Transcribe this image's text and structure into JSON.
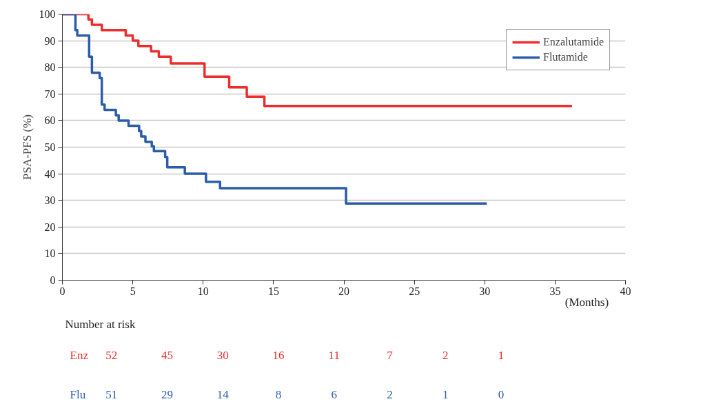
{
  "chart_data": {
    "type": "step",
    "xlabel": "(Months)",
    "ylabel": "PSA-PFS (%)",
    "xlim": [
      0,
      40
    ],
    "xticks": [
      0,
      5,
      10,
      15,
      20,
      25,
      30,
      35,
      40
    ],
    "ylim": [
      0,
      100
    ],
    "yticks": [
      0,
      10,
      20,
      30,
      40,
      50,
      60,
      70,
      80,
      90,
      100
    ],
    "grid": "y",
    "legend": "top right",
    "marker": "none",
    "line_style": "solid",
    "series": [
      {
        "name": "Enzalutamide",
        "color": "#ee2c2c",
        "x": [
          0,
          1.85,
          2.1,
          2.8,
          4.5,
          5.0,
          5.4,
          6.3,
          6.85,
          7.7,
          10.1,
          11.85,
          13.1,
          14.35,
          36.2
        ],
        "values": [
          100,
          98,
          96,
          94,
          92,
          90,
          88,
          86,
          84,
          81.5,
          76.5,
          72.5,
          69,
          65.5,
          65.5
        ]
      },
      {
        "name": "Flutamide",
        "color": "#2a5caa",
        "x": [
          0,
          0.93,
          1.06,
          1.9,
          2.1,
          2.65,
          2.8,
          3.0,
          3.8,
          4.0,
          4.7,
          5.45,
          5.6,
          5.9,
          6.35,
          6.5,
          7.3,
          7.45,
          8.7,
          10.2,
          11.2,
          20.15,
          30.15
        ],
        "values": [
          100,
          94,
          92,
          84,
          78,
          76,
          66,
          64,
          62,
          60,
          58,
          56,
          54,
          52,
          50.3,
          48.5,
          46.3,
          42.4,
          40,
          37,
          34.6,
          28.8,
          28.8
        ]
      }
    ],
    "annotations": [
      "Number at risk",
      "Enz",
      "52",
      "45",
      "30",
      "16",
      "11",
      "7",
      "2",
      "1",
      "Flu",
      "51",
      "29",
      "14",
      "8",
      "6",
      "2",
      "1",
      "0"
    ]
  }
}
